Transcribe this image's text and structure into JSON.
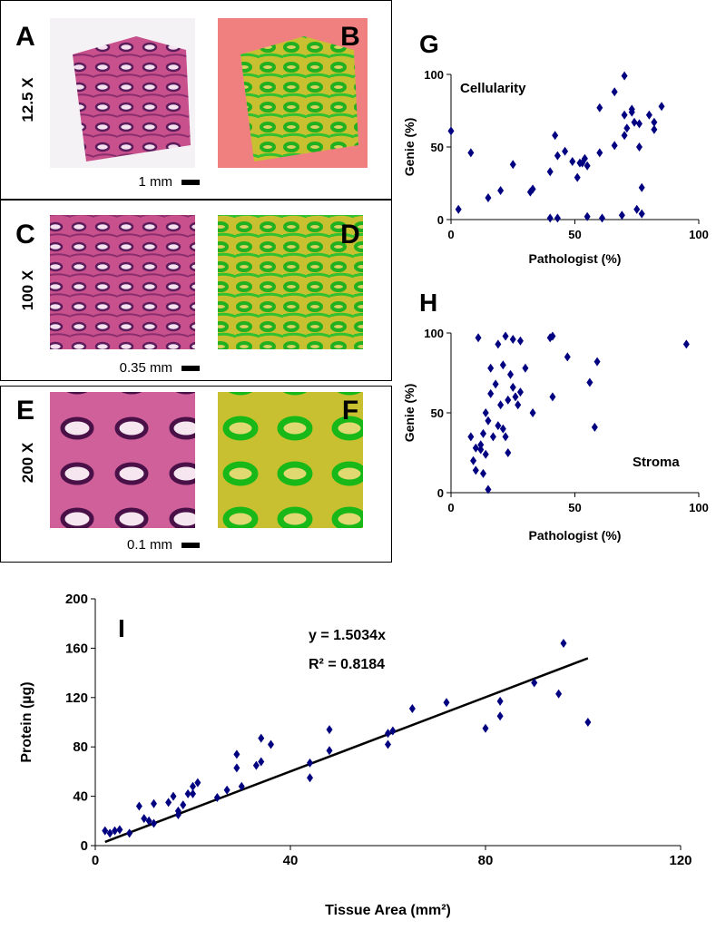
{
  "image_panels": [
    {
      "labels": [
        "A",
        "B"
      ],
      "magnification": "12.5 X",
      "scale": "1 mm"
    },
    {
      "labels": [
        "C",
        "D"
      ],
      "magnification": "100 X",
      "scale": "0.35 mm"
    },
    {
      "labels": [
        "E",
        "F"
      ],
      "magnification": "200 X",
      "scale": "0.1 mm"
    }
  ],
  "chart_data": [
    {
      "type": "scatter",
      "panel_label": "G",
      "annotation": "Cellularity",
      "x_label": "Pathologist (%)",
      "y_label": "Genie (%)",
      "color": "#000080",
      "xlim": [
        0,
        100
      ],
      "ylim": [
        0,
        100
      ],
      "xticks": [
        0,
        50,
        100
      ],
      "yticks": [
        0,
        50,
        100
      ],
      "x": [
        0,
        3,
        8,
        15,
        20,
        25,
        32,
        33,
        40,
        40,
        42,
        43,
        43,
        46,
        49,
        51,
        52,
        53,
        54,
        55,
        55,
        60,
        60,
        61,
        66,
        66,
        69,
        70,
        70,
        70,
        71,
        73,
        73,
        74,
        75,
        76,
        76,
        77,
        77,
        80,
        82,
        82,
        85
      ],
      "values": [
        61,
        7,
        46,
        15,
        20,
        38,
        19,
        21,
        33,
        1,
        58,
        1,
        44,
        47,
        40,
        29,
        39,
        39,
        42,
        37,
        2,
        46,
        77,
        1,
        51,
        88,
        3,
        99,
        72,
        58,
        63,
        74,
        76,
        67,
        7,
        66,
        50,
        22,
        4,
        72,
        67,
        62,
        78
      ]
    },
    {
      "type": "scatter",
      "panel_label": "H",
      "annotation": "Stroma",
      "x_label": "Pathologist (%)",
      "y_label": "Genie (%)",
      "color": "#000080",
      "xlim": [
        0,
        100
      ],
      "ylim": [
        0,
        100
      ],
      "xticks": [
        0,
        50,
        100
      ],
      "yticks": [
        0,
        50,
        100
      ],
      "x": [
        8,
        9,
        10,
        10,
        11,
        12,
        12,
        13,
        13,
        14,
        14,
        15,
        15,
        16,
        16,
        17,
        18,
        19,
        19,
        20,
        21,
        21,
        22,
        22,
        23,
        23,
        24,
        25,
        25,
        26,
        27,
        28,
        28,
        30,
        33,
        40,
        41,
        41,
        47,
        56,
        58,
        59,
        95
      ],
      "values": [
        35,
        20,
        28,
        14,
        97,
        27,
        30,
        12,
        37,
        24,
        50,
        2,
        45,
        62,
        78,
        35,
        68,
        93,
        42,
        55,
        80,
        40,
        35,
        98,
        58,
        25,
        74,
        66,
        96,
        60,
        55,
        95,
        63,
        78,
        50,
        97,
        98,
        60,
        85,
        69,
        41,
        82,
        93
      ]
    },
    {
      "type": "scatter",
      "panel_label": "I",
      "equation": "y = 1.5034x",
      "r_squared": "R² = 0.8184",
      "slope": 1.5034,
      "x_label": "Tissue Area (mm²)",
      "y_label": "Protein (µg)",
      "color": "#000080",
      "xlim": [
        0,
        120
      ],
      "ylim": [
        0,
        200
      ],
      "xticks": [
        0,
        40,
        80,
        120
      ],
      "yticks": [
        0,
        40,
        80,
        120,
        160,
        200
      ],
      "x": [
        2,
        3,
        4,
        5,
        7,
        9,
        10,
        11,
        12,
        12,
        15,
        16,
        17,
        17,
        18,
        19,
        20,
        20,
        21,
        25,
        27,
        29,
        29,
        30,
        33,
        34,
        34,
        36,
        44,
        44,
        48,
        48,
        60,
        60,
        61,
        65,
        72,
        80,
        83,
        83,
        90,
        95,
        96,
        101
      ],
      "values": [
        12,
        10,
        12,
        13,
        10,
        32,
        22,
        20,
        18,
        34,
        35,
        40,
        28,
        25,
        33,
        42,
        42,
        48,
        51,
        39,
        45,
        74,
        63,
        48,
        65,
        87,
        68,
        82,
        55,
        67,
        94,
        77,
        82,
        91,
        93,
        111,
        116,
        95,
        117,
        105,
        132,
        123,
        164,
        100
      ]
    }
  ]
}
